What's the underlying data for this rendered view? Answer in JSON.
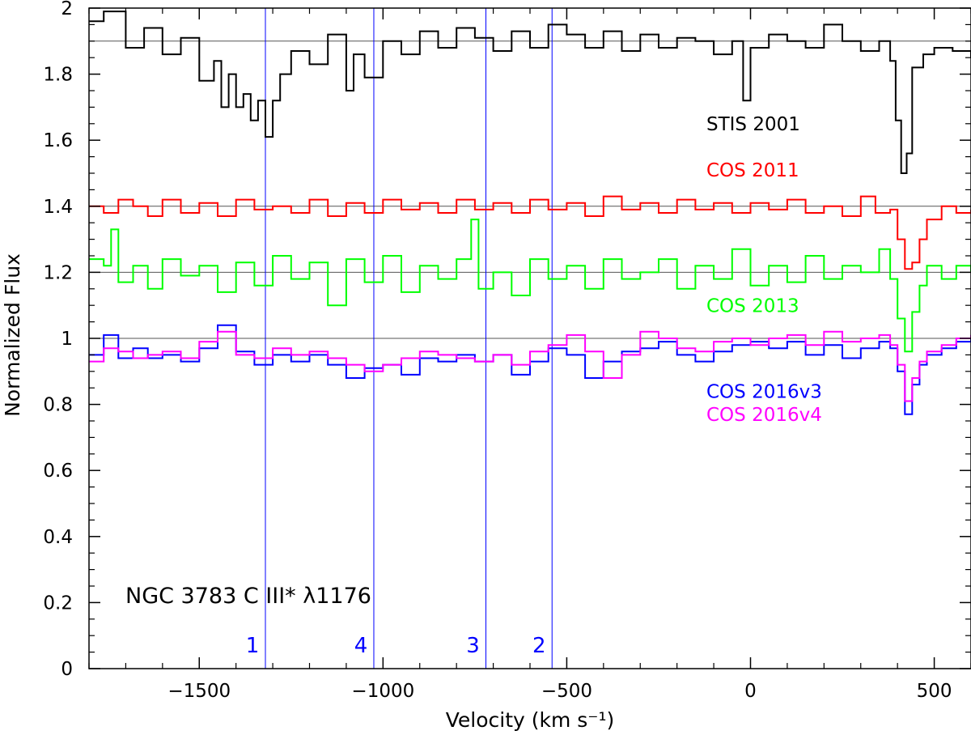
{
  "chart_data": {
    "type": "line",
    "step": true,
    "annotation": "NGC 3783 C III* λ1176",
    "xlabel": "Velocity (km s⁻¹)",
    "ylabel": "Normalized Flux",
    "xlim": [
      -1800,
      600
    ],
    "ylim": [
      0,
      2
    ],
    "xticks": [
      -1500,
      -1000,
      -500,
      0,
      500
    ],
    "xtick_labels": [
      "−1500",
      "−1000",
      "−500",
      "0",
      "500"
    ],
    "yticks": [
      0,
      0.2,
      0.4,
      0.6,
      0.8,
      1,
      1.2,
      1.4,
      1.6,
      1.8,
      2
    ],
    "ytick_labels": [
      "0",
      "0.2",
      "0.4",
      "0.6",
      "0.8",
      "1",
      "1.2",
      "1.4",
      "1.6",
      "1.8",
      "2"
    ],
    "reference_lines": [
      1.0,
      1.2,
      1.4,
      1.9
    ],
    "components": [
      {
        "label": "1",
        "velocity": -1320
      },
      {
        "label": "4",
        "velocity": -1025
      },
      {
        "label": "3",
        "velocity": -720
      },
      {
        "label": "2",
        "velocity": -540
      }
    ],
    "component_color": "#0000ff",
    "series": [
      {
        "name": "STIS 2001",
        "color": "#000000",
        "label": "STIS 2001",
        "points": [
          [
            -1800,
            1.96
          ],
          [
            -1760,
            1.99
          ],
          [
            -1700,
            1.88
          ],
          [
            -1650,
            1.94
          ],
          [
            -1600,
            1.86
          ],
          [
            -1550,
            1.91
          ],
          [
            -1500,
            1.78
          ],
          [
            -1460,
            1.84
          ],
          [
            -1440,
            1.7
          ],
          [
            -1420,
            1.8
          ],
          [
            -1400,
            1.7
          ],
          [
            -1380,
            1.74
          ],
          [
            -1360,
            1.66
          ],
          [
            -1340,
            1.72
          ],
          [
            -1320,
            1.61
          ],
          [
            -1300,
            1.72
          ],
          [
            -1280,
            1.8
          ],
          [
            -1250,
            1.87
          ],
          [
            -1200,
            1.83
          ],
          [
            -1150,
            1.92
          ],
          [
            -1100,
            1.75
          ],
          [
            -1080,
            1.86
          ],
          [
            -1050,
            1.79
          ],
          [
            -1000,
            1.9
          ],
          [
            -950,
            1.86
          ],
          [
            -900,
            1.93
          ],
          [
            -850,
            1.88
          ],
          [
            -800,
            1.94
          ],
          [
            -750,
            1.91
          ],
          [
            -700,
            1.87
          ],
          [
            -650,
            1.93
          ],
          [
            -600,
            1.88
          ],
          [
            -550,
            1.95
          ],
          [
            -500,
            1.92
          ],
          [
            -450,
            1.88
          ],
          [
            -400,
            1.93
          ],
          [
            -350,
            1.87
          ],
          [
            -300,
            1.92
          ],
          [
            -250,
            1.88
          ],
          [
            -200,
            1.91
          ],
          [
            -150,
            1.9
          ],
          [
            -100,
            1.86
          ],
          [
            -50,
            1.9
          ],
          [
            -20,
            1.72
          ],
          [
            0,
            1.88
          ],
          [
            50,
            1.92
          ],
          [
            100,
            1.9
          ],
          [
            150,
            1.88
          ],
          [
            200,
            1.95
          ],
          [
            250,
            1.9
          ],
          [
            300,
            1.87
          ],
          [
            350,
            1.9
          ],
          [
            380,
            1.84
          ],
          [
            395,
            1.66
          ],
          [
            410,
            1.5
          ],
          [
            425,
            1.56
          ],
          [
            440,
            1.82
          ],
          [
            470,
            1.86
          ],
          [
            500,
            1.88
          ],
          [
            550,
            1.87
          ],
          [
            600,
            1.85
          ]
        ],
        "label_velocity": -120,
        "label_flux": 1.63
      },
      {
        "name": "COS 2011",
        "color": "#ff0000",
        "label": "COS 2011",
        "points": [
          [
            -1800,
            1.4
          ],
          [
            -1760,
            1.38
          ],
          [
            -1720,
            1.42
          ],
          [
            -1680,
            1.4
          ],
          [
            -1640,
            1.37
          ],
          [
            -1600,
            1.42
          ],
          [
            -1550,
            1.38
          ],
          [
            -1500,
            1.41
          ],
          [
            -1450,
            1.37
          ],
          [
            -1400,
            1.42
          ],
          [
            -1350,
            1.39
          ],
          [
            -1300,
            1.4
          ],
          [
            -1250,
            1.38
          ],
          [
            -1200,
            1.42
          ],
          [
            -1150,
            1.37
          ],
          [
            -1100,
            1.41
          ],
          [
            -1050,
            1.38
          ],
          [
            -1000,
            1.42
          ],
          [
            -950,
            1.39
          ],
          [
            -900,
            1.41
          ],
          [
            -850,
            1.38
          ],
          [
            -800,
            1.42
          ],
          [
            -750,
            1.39
          ],
          [
            -700,
            1.41
          ],
          [
            -650,
            1.38
          ],
          [
            -600,
            1.42
          ],
          [
            -550,
            1.39
          ],
          [
            -500,
            1.41
          ],
          [
            -450,
            1.37
          ],
          [
            -400,
            1.43
          ],
          [
            -350,
            1.39
          ],
          [
            -300,
            1.41
          ],
          [
            -250,
            1.38
          ],
          [
            -200,
            1.42
          ],
          [
            -150,
            1.39
          ],
          [
            -100,
            1.41
          ],
          [
            -50,
            1.38
          ],
          [
            0,
            1.41
          ],
          [
            50,
            1.39
          ],
          [
            100,
            1.42
          ],
          [
            150,
            1.38
          ],
          [
            200,
            1.4
          ],
          [
            250,
            1.37
          ],
          [
            300,
            1.43
          ],
          [
            340,
            1.38
          ],
          [
            380,
            1.39
          ],
          [
            400,
            1.3
          ],
          [
            420,
            1.21
          ],
          [
            440,
            1.23
          ],
          [
            460,
            1.3
          ],
          [
            480,
            1.36
          ],
          [
            520,
            1.4
          ],
          [
            560,
            1.38
          ],
          [
            600,
            1.39
          ]
        ],
        "label_velocity": -120,
        "label_flux": 1.49
      },
      {
        "name": "COS 2013",
        "color": "#00ff00",
        "label": "COS 2013",
        "points": [
          [
            -1800,
            1.24
          ],
          [
            -1760,
            1.22
          ],
          [
            -1740,
            1.33
          ],
          [
            -1720,
            1.17
          ],
          [
            -1680,
            1.22
          ],
          [
            -1640,
            1.15
          ],
          [
            -1600,
            1.24
          ],
          [
            -1550,
            1.19
          ],
          [
            -1500,
            1.22
          ],
          [
            -1450,
            1.14
          ],
          [
            -1400,
            1.23
          ],
          [
            -1350,
            1.16
          ],
          [
            -1300,
            1.25
          ],
          [
            -1250,
            1.18
          ],
          [
            -1200,
            1.23
          ],
          [
            -1150,
            1.1
          ],
          [
            -1100,
            1.24
          ],
          [
            -1050,
            1.17
          ],
          [
            -1000,
            1.25
          ],
          [
            -950,
            1.14
          ],
          [
            -900,
            1.22
          ],
          [
            -850,
            1.18
          ],
          [
            -800,
            1.24
          ],
          [
            -760,
            1.36
          ],
          [
            -740,
            1.15
          ],
          [
            -700,
            1.2
          ],
          [
            -650,
            1.13
          ],
          [
            -600,
            1.24
          ],
          [
            -550,
            1.18
          ],
          [
            -500,
            1.22
          ],
          [
            -450,
            1.15
          ],
          [
            -400,
            1.24
          ],
          [
            -350,
            1.18
          ],
          [
            -300,
            1.2
          ],
          [
            -250,
            1.24
          ],
          [
            -200,
            1.15
          ],
          [
            -150,
            1.22
          ],
          [
            -100,
            1.18
          ],
          [
            -50,
            1.27
          ],
          [
            0,
            1.16
          ],
          [
            50,
            1.22
          ],
          [
            100,
            1.17
          ],
          [
            150,
            1.25
          ],
          [
            200,
            1.18
          ],
          [
            250,
            1.22
          ],
          [
            300,
            1.2
          ],
          [
            350,
            1.27
          ],
          [
            380,
            1.18
          ],
          [
            400,
            1.06
          ],
          [
            420,
            0.96
          ],
          [
            440,
            1.08
          ],
          [
            460,
            1.16
          ],
          [
            480,
            1.22
          ],
          [
            520,
            1.18
          ],
          [
            560,
            1.22
          ],
          [
            600,
            1.2
          ]
        ],
        "label_velocity": -120,
        "label_flux": 1.08
      },
      {
        "name": "COS 2016v3",
        "color": "#0000ff",
        "label": "COS 2016v3",
        "points": [
          [
            -1800,
            0.95
          ],
          [
            -1760,
            1.01
          ],
          [
            -1720,
            0.94
          ],
          [
            -1680,
            0.97
          ],
          [
            -1640,
            0.94
          ],
          [
            -1600,
            0.95
          ],
          [
            -1550,
            0.93
          ],
          [
            -1500,
            0.97
          ],
          [
            -1450,
            1.04
          ],
          [
            -1400,
            0.96
          ],
          [
            -1350,
            0.92
          ],
          [
            -1300,
            0.95
          ],
          [
            -1250,
            0.93
          ],
          [
            -1200,
            0.95
          ],
          [
            -1150,
            0.92
          ],
          [
            -1100,
            0.88
          ],
          [
            -1050,
            0.91
          ],
          [
            -1000,
            0.92
          ],
          [
            -950,
            0.89
          ],
          [
            -900,
            0.94
          ],
          [
            -850,
            0.93
          ],
          [
            -800,
            0.95
          ],
          [
            -750,
            0.93
          ],
          [
            -700,
            0.95
          ],
          [
            -650,
            0.89
          ],
          [
            -600,
            0.93
          ],
          [
            -550,
            0.97
          ],
          [
            -500,
            0.95
          ],
          [
            -450,
            0.88
          ],
          [
            -400,
            0.93
          ],
          [
            -350,
            0.96
          ],
          [
            -300,
            0.97
          ],
          [
            -250,
            0.99
          ],
          [
            -200,
            0.95
          ],
          [
            -150,
            0.93
          ],
          [
            -100,
            0.96
          ],
          [
            -50,
            0.98
          ],
          [
            0,
            0.99
          ],
          [
            50,
            0.97
          ],
          [
            100,
            0.99
          ],
          [
            150,
            0.95
          ],
          [
            200,
            0.98
          ],
          [
            250,
            0.94
          ],
          [
            300,
            0.97
          ],
          [
            350,
            0.99
          ],
          [
            380,
            0.97
          ],
          [
            400,
            0.9
          ],
          [
            420,
            0.77
          ],
          [
            440,
            0.86
          ],
          [
            460,
            0.92
          ],
          [
            480,
            0.95
          ],
          [
            520,
            0.97
          ],
          [
            560,
            0.99
          ],
          [
            600,
            1.01
          ]
        ],
        "label_velocity": -120,
        "label_flux": 0.82
      },
      {
        "name": "COS 2016v4",
        "color": "#ff00ff",
        "label": "COS 2016v4",
        "points": [
          [
            -1800,
            0.93
          ],
          [
            -1760,
            0.97
          ],
          [
            -1720,
            0.96
          ],
          [
            -1680,
            0.94
          ],
          [
            -1640,
            0.95
          ],
          [
            -1600,
            0.96
          ],
          [
            -1550,
            0.94
          ],
          [
            -1500,
            0.99
          ],
          [
            -1450,
            1.02
          ],
          [
            -1400,
            0.95
          ],
          [
            -1350,
            0.94
          ],
          [
            -1300,
            0.97
          ],
          [
            -1250,
            0.95
          ],
          [
            -1200,
            0.96
          ],
          [
            -1150,
            0.94
          ],
          [
            -1100,
            0.92
          ],
          [
            -1050,
            0.9
          ],
          [
            -1000,
            0.92
          ],
          [
            -950,
            0.94
          ],
          [
            -900,
            0.96
          ],
          [
            -850,
            0.95
          ],
          [
            -800,
            0.94
          ],
          [
            -750,
            0.93
          ],
          [
            -700,
            0.95
          ],
          [
            -650,
            0.92
          ],
          [
            -600,
            0.96
          ],
          [
            -550,
            0.98
          ],
          [
            -500,
            1.01
          ],
          [
            -450,
            0.96
          ],
          [
            -400,
            0.88
          ],
          [
            -350,
            0.95
          ],
          [
            -300,
            1.02
          ],
          [
            -250,
            1.0
          ],
          [
            -200,
            0.97
          ],
          [
            -150,
            0.96
          ],
          [
            -100,
            0.99
          ],
          [
            -50,
            1.0
          ],
          [
            0,
            0.98
          ],
          [
            50,
            1.0
          ],
          [
            100,
            1.01
          ],
          [
            150,
            0.98
          ],
          [
            200,
            1.02
          ],
          [
            250,
            0.99
          ],
          [
            300,
            1.0
          ],
          [
            350,
            1.01
          ],
          [
            380,
            0.98
          ],
          [
            400,
            0.92
          ],
          [
            420,
            0.81
          ],
          [
            440,
            0.88
          ],
          [
            460,
            0.93
          ],
          [
            480,
            0.96
          ],
          [
            520,
            0.98
          ],
          [
            560,
            1.0
          ],
          [
            600,
            1.01
          ]
        ],
        "label_velocity": -120,
        "label_flux": 0.75
      }
    ]
  }
}
